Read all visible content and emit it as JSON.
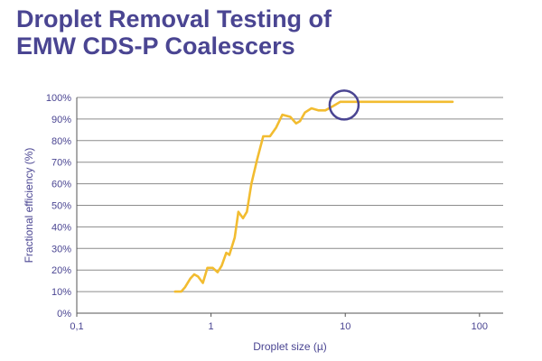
{
  "title": {
    "line1": "Droplet Removal Testing of",
    "line2": "EMW CDS-P Coalescers"
  },
  "colors": {
    "title": "#4a4592",
    "axis_text": "#4a4592",
    "series": "#f2bc30",
    "highlight_circle": "#4a4592",
    "grid": "#8c8c8c"
  },
  "chart_data": {
    "type": "line",
    "xlabel": "Droplet size (µ)",
    "ylabel": "Fractional efficiency (%)",
    "x_scale": "log",
    "xlim": [
      0.1,
      150
    ],
    "ylim": [
      0,
      100
    ],
    "x_ticks": [
      {
        "value": 0.1,
        "label": "0,1"
      },
      {
        "value": 1,
        "label": "1"
      },
      {
        "value": 10,
        "label": "10"
      },
      {
        "value": 100,
        "label": "100"
      }
    ],
    "y_ticks": [
      {
        "value": 0,
        "label": "0%"
      },
      {
        "value": 10,
        "label": "10%"
      },
      {
        "value": 20,
        "label": "20%"
      },
      {
        "value": 30,
        "label": "30%"
      },
      {
        "value": 40,
        "label": "40%"
      },
      {
        "value": 50,
        "label": "50%"
      },
      {
        "value": 60,
        "label": "60%"
      },
      {
        "value": 70,
        "label": "70%"
      },
      {
        "value": 80,
        "label": "80%"
      },
      {
        "value": 90,
        "label": "90%"
      },
      {
        "value": 100,
        "label": "100%"
      }
    ],
    "grid": "horizontal",
    "series": [
      {
        "x": [
          0.54,
          0.6,
          0.64,
          0.7,
          0.75,
          0.8,
          0.87,
          0.94,
          1.03,
          1.12,
          1.2,
          1.3,
          1.37,
          1.5,
          1.6,
          1.73,
          1.85,
          2.0,
          2.2,
          2.45,
          2.75,
          3.05,
          3.4,
          3.9,
          4.3,
          4.6,
          5.0,
          5.6,
          6.3,
          7.1,
          8.1,
          9.2,
          9.9,
          11.2,
          63
        ],
        "y": [
          10,
          10,
          12,
          16,
          18,
          17,
          14,
          21,
          21,
          19,
          22,
          28,
          27,
          35,
          47,
          44,
          47,
          60,
          71,
          82,
          82,
          86,
          92,
          91,
          88,
          89,
          93,
          95,
          94,
          94,
          96,
          98,
          98,
          98,
          98
        ],
        "color": "#f2bc30"
      }
    ],
    "annotations": [
      {
        "type": "circle",
        "x": 9.8,
        "y": 96.5,
        "color": "#4a4592"
      }
    ]
  }
}
